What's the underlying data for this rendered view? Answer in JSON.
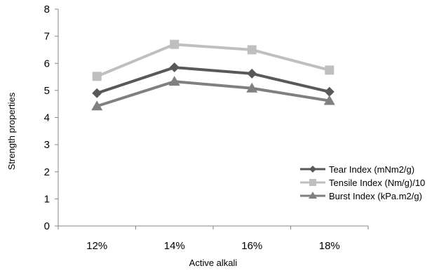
{
  "chart_data": {
    "type": "line",
    "title": "",
    "xlabel": "Active alkali",
    "ylabel": "Strength properties",
    "categories": [
      "12%",
      "14%",
      "16%",
      "18%"
    ],
    "ylim": [
      0,
      8
    ],
    "yticks": [
      0,
      1,
      2,
      3,
      4,
      5,
      6,
      7,
      8
    ],
    "grid": false,
    "legend_position": "bottom-right",
    "series": [
      {
        "name": "Tear Index (mNm2/g)",
        "values": [
          4.9,
          5.85,
          5.62,
          4.95
        ],
        "color": "#595959",
        "marker": "diamond"
      },
      {
        "name": "Tensile Index (Nm/g)/10",
        "values": [
          5.52,
          6.7,
          6.5,
          5.75
        ],
        "color": "#bfbfbf",
        "marker": "square"
      },
      {
        "name": "Burst Index (kPa.m2/g)",
        "values": [
          4.42,
          5.33,
          5.08,
          4.62
        ],
        "color": "#808080",
        "marker": "triangle"
      }
    ]
  }
}
